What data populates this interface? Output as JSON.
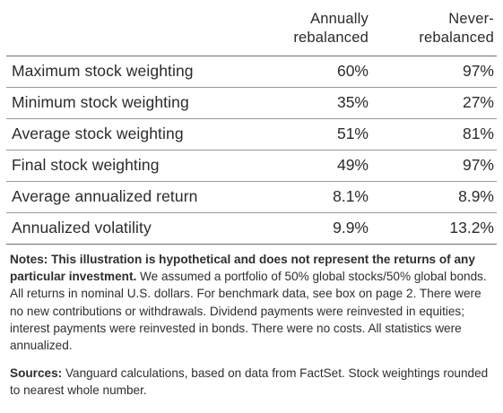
{
  "table": {
    "columns": {
      "annual": [
        "Annually",
        "rebalanced"
      ],
      "never": [
        "Never-",
        "rebalanced"
      ]
    },
    "rows": [
      {
        "label": "Maximum stock weighting",
        "annual": "60%",
        "never": "97%"
      },
      {
        "label": "Minimum stock weighting",
        "annual": "35%",
        "never": "27%"
      },
      {
        "label": "Average stock weighting",
        "annual": "51%",
        "never": "81%"
      },
      {
        "label": "Final stock weighting",
        "annual": "49%",
        "never": "97%"
      },
      {
        "label": "Average annualized return",
        "annual": "8.1%",
        "never": "8.9%"
      },
      {
        "label": "Annualized volatility",
        "annual": "9.9%",
        "never": "13.2%"
      }
    ]
  },
  "notes": {
    "bold": "Notes: This illustration is hypothetical and does not represent the returns of any particular investment.",
    "text": " We assumed a portfolio of 50% global stocks/50% global bonds. All returns in nominal U.S. dollars. For benchmark data, see box on page 2. There were no new contributions or withdrawals. Dividend payments were reinvested in equities; interest payments were reinvested in bonds. There were no costs. All statistics were annualized."
  },
  "sources": {
    "bold": "Sources:",
    "text": " Vanguard calculations, based on data from FactSet. Stock weightings rounded to nearest whole number."
  }
}
